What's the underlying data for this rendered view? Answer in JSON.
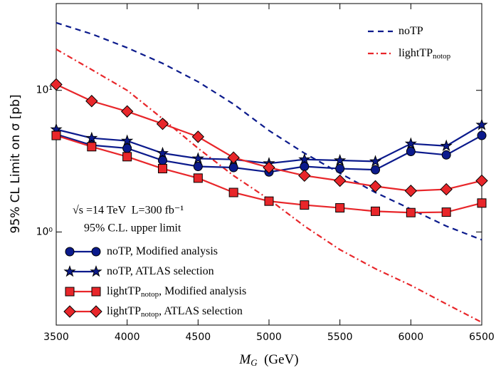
{
  "chart_data": {
    "type": "line",
    "y_label": "95% CL Limit on σ [pb]",
    "x_label": {
      "main": "M",
      "sub": "G",
      "suffix": "  (GeV)"
    },
    "annotations": [
      "√s =14 TeV  L=300 fb⁻¹",
      "95% C.L. upper limit"
    ],
    "x": [
      3500,
      3750,
      4000,
      4250,
      4500,
      4750,
      5000,
      5250,
      5500,
      5750,
      6000,
      6250,
      6500
    ],
    "xlim": [
      3500,
      6500
    ],
    "xticks": [
      3500,
      4000,
      4500,
      5000,
      5500,
      6000,
      6500
    ],
    "ylim": [
      0.22,
      41
    ],
    "log_y": true,
    "yticks": [
      {
        "value": 1,
        "label": "10⁰"
      },
      {
        "value": 10,
        "label": "10¹"
      }
    ],
    "series": [
      {
        "name": {
          "main": "noTP"
        },
        "color": "#0b1a8c",
        "linestyle": "dashed",
        "marker": "none",
        "values": [
          30,
          25,
          20,
          15.5,
          11.5,
          8,
          5.2,
          3.6,
          2.6,
          1.9,
          1.45,
          1.1,
          0.88
        ]
      },
      {
        "name": {
          "main": "lightTP",
          "sub": "notop"
        },
        "color": "#e8262a",
        "linestyle": "dashdot",
        "marker": "none",
        "values": [
          19.5,
          14,
          10,
          6.3,
          3.9,
          2.5,
          1.7,
          1.1,
          0.75,
          0.55,
          0.42,
          0.31,
          0.23
        ]
      },
      {
        "name": {
          "main": "noTP",
          "suffix": ", Modified analysis"
        },
        "color": "#0b1a8c",
        "linestyle": "solid",
        "marker": "circle",
        "values": [
          4.9,
          4.1,
          3.9,
          3.2,
          2.9,
          2.85,
          2.65,
          2.9,
          2.8,
          2.75,
          3.7,
          3.5,
          4.8
        ]
      },
      {
        "name": {
          "main": "noTP",
          "suffix": ", ATLAS selection"
        },
        "color": "#0b1a8c",
        "linestyle": "solid",
        "marker": "star",
        "values": [
          5.3,
          4.6,
          4.4,
          3.6,
          3.3,
          3.25,
          3.05,
          3.25,
          3.2,
          3.15,
          4.2,
          4.05,
          5.7
        ]
      },
      {
        "name": {
          "main": "lightTP",
          "sub": "notop",
          "suffix": ", Modified analysis"
        },
        "color": "#e8262a",
        "linestyle": "solid",
        "marker": "square",
        "values": [
          4.8,
          4.0,
          3.4,
          2.8,
          2.4,
          1.9,
          1.65,
          1.55,
          1.48,
          1.4,
          1.37,
          1.38,
          1.6
        ]
      },
      {
        "name": {
          "main": "lightTP",
          "sub": "notop",
          "suffix": ", ATLAS selection"
        },
        "color": "#e8262a",
        "linestyle": "solid",
        "marker": "diamond",
        "values": [
          11,
          8.4,
          7.1,
          5.8,
          4.7,
          3.35,
          2.85,
          2.5,
          2.3,
          2.1,
          1.95,
          2.0,
          2.3
        ]
      }
    ]
  }
}
